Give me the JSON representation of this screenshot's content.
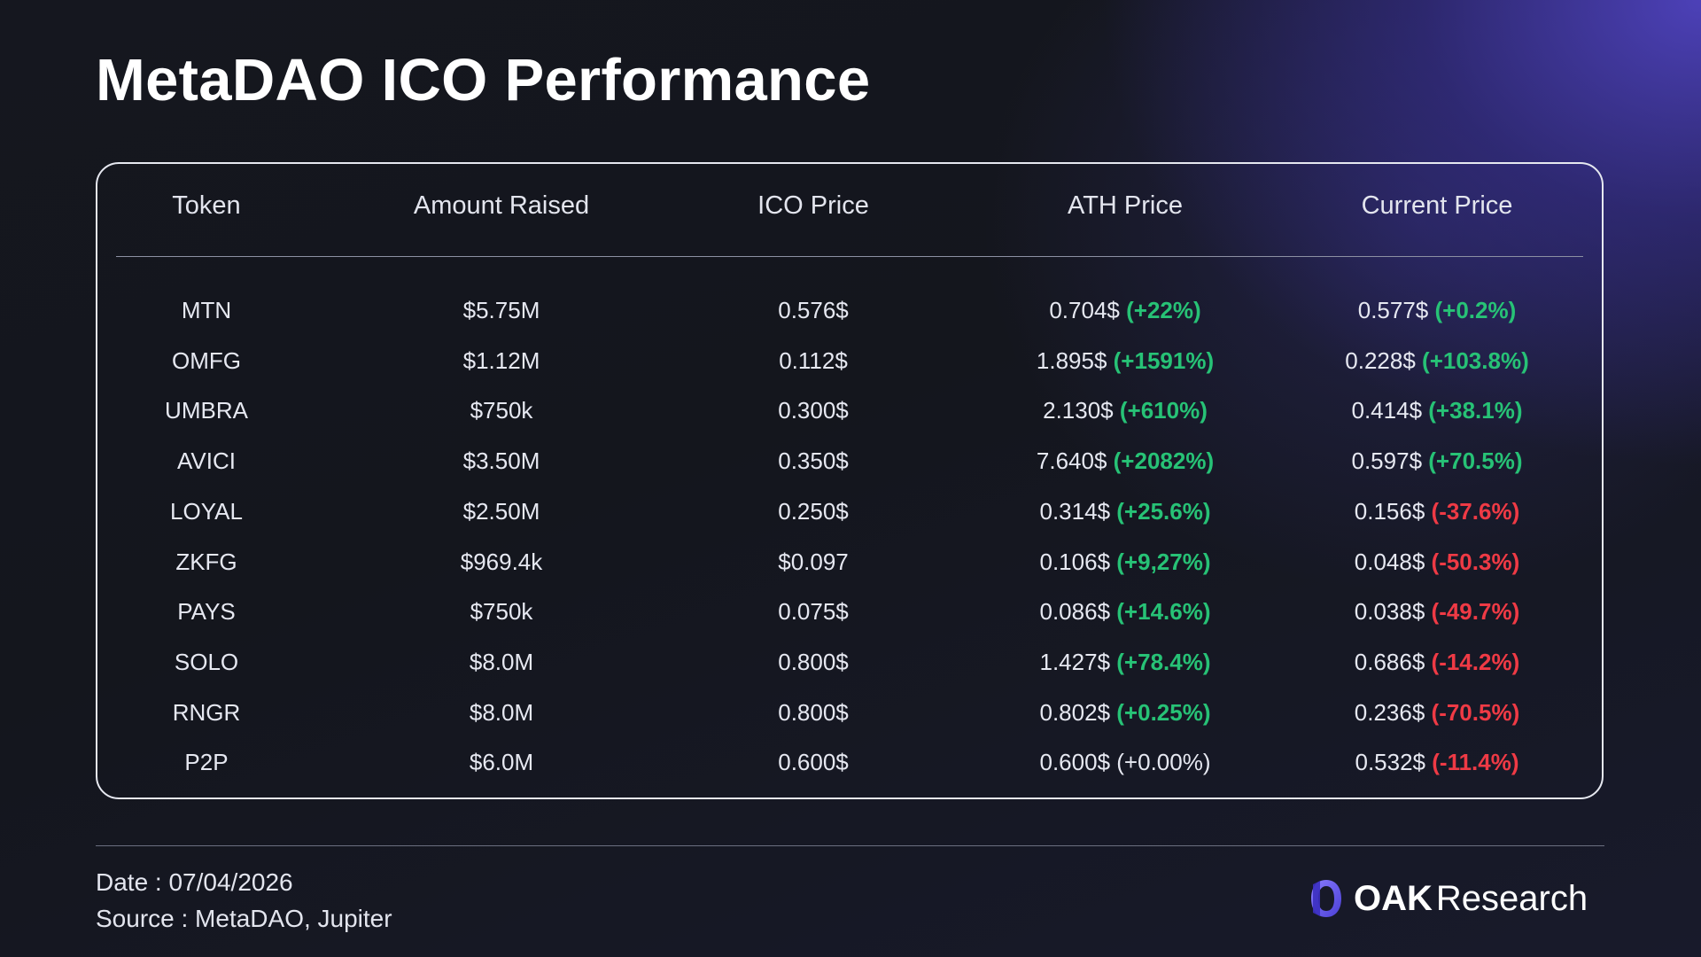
{
  "title": "MetaDAO ICO Performance",
  "colors": {
    "positive": "#27c276",
    "negative": "#ef3a45",
    "accent": "#5b4ff0",
    "text": "#e6e8f1"
  },
  "chart_data": {
    "type": "table",
    "title": "MetaDAO ICO Performance",
    "columns": [
      "Token",
      "Amount Raised",
      "ICO Price",
      "ATH Price",
      "Current Price"
    ],
    "rows": [
      {
        "token": "MTN",
        "amount": "$5.75M",
        "ico": "0.576$",
        "ath_price": "0.704$",
        "ath_change": "(+22%)",
        "ath_sign": "pos",
        "cur_price": "0.577$",
        "cur_change": "(+0.2%)",
        "cur_sign": "pos"
      },
      {
        "token": "OMFG",
        "amount": "$1.12M",
        "ico": "0.112$",
        "ath_price": "1.895$",
        "ath_change": "(+1591%)",
        "ath_sign": "pos",
        "cur_price": "0.228$",
        "cur_change": "(+103.8%)",
        "cur_sign": "pos"
      },
      {
        "token": "UMBRA",
        "amount": "$750k",
        "ico": "0.300$",
        "ath_price": "2.130$",
        "ath_change": "(+610%)",
        "ath_sign": "pos",
        "cur_price": "0.414$",
        "cur_change": "(+38.1%)",
        "cur_sign": "pos"
      },
      {
        "token": "AVICI",
        "amount": "$3.50M",
        "ico": "0.350$",
        "ath_price": "7.640$",
        "ath_change": "(+2082%)",
        "ath_sign": "pos",
        "cur_price": "0.597$",
        "cur_change": "(+70.5%)",
        "cur_sign": "pos"
      },
      {
        "token": "LOYAL",
        "amount": "$2.50M",
        "ico": "0.250$",
        "ath_price": "0.314$",
        "ath_change": "(+25.6%)",
        "ath_sign": "pos",
        "cur_price": "0.156$",
        "cur_change": "(-37.6%)",
        "cur_sign": "neg"
      },
      {
        "token": "ZKFG",
        "amount": "$969.4k",
        "ico": "$0.097",
        "ath_price": "0.106$",
        "ath_change": "(+9,27%)",
        "ath_sign": "pos",
        "cur_price": "0.048$",
        "cur_change": "(-50.3%)",
        "cur_sign": "neg"
      },
      {
        "token": "PAYS",
        "amount": "$750k",
        "ico": "0.075$",
        "ath_price": "0.086$",
        "ath_change": "(+14.6%)",
        "ath_sign": "pos",
        "cur_price": "0.038$",
        "cur_change": "(-49.7%)",
        "cur_sign": "neg"
      },
      {
        "token": "SOLO",
        "amount": "$8.0M",
        "ico": "0.800$",
        "ath_price": "1.427$",
        "ath_change": "(+78.4%)",
        "ath_sign": "pos",
        "cur_price": "0.686$",
        "cur_change": "(-14.2%)",
        "cur_sign": "neg"
      },
      {
        "token": "RNGR",
        "amount": "$8.0M",
        "ico": "0.800$",
        "ath_price": "0.802$",
        "ath_change": "(+0.25%)",
        "ath_sign": "pos",
        "cur_price": "0.236$",
        "cur_change": "(-70.5%)",
        "cur_sign": "neg"
      },
      {
        "token": "P2P",
        "amount": "$6.0M",
        "ico": "0.600$",
        "ath_price": "0.600$",
        "ath_change": "(+0.00%)",
        "ath_sign": "neutral",
        "cur_price": "0.532$",
        "cur_change": "(-11.4%)",
        "cur_sign": "neg"
      }
    ]
  },
  "footer": {
    "date": "Date : 07/04/2026",
    "source": "Source : MetaDAO, Jupiter"
  },
  "brand": {
    "oak": "OAK",
    "research": "Research",
    "logo_icon": "oak-logo-icon"
  }
}
